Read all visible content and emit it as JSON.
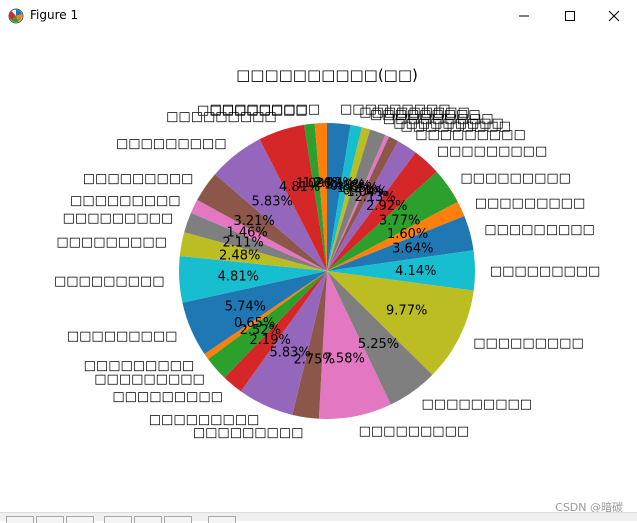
{
  "window": {
    "title": "Figure 1",
    "icons": {
      "app": "matplotlib-icon",
      "minimize": "minimize-icon",
      "maximize": "maximize-icon",
      "close": "close-icon"
    }
  },
  "watermark": "CSDN @暗碳",
  "chart_data": {
    "type": "pie",
    "title": "□□□□□□□□□□(□□)",
    "start_angle_deg": 90,
    "direction": "clockwise",
    "slices": [
      {
        "label": "□□□□□□□□□",
        "pct_label": "2.42%",
        "value": 2.42,
        "color": "#1f77b4"
      },
      {
        "label": "□□□□□□□□□",
        "pct_label": "1.19%",
        "value": 1.19,
        "color": "#17becf"
      },
      {
        "label": "□□□□□□□□□",
        "pct_label": "0.88%",
        "value": 0.88,
        "color": "#bcbd22"
      },
      {
        "label": "□□□□□□□□□",
        "pct_label": "1.66%",
        "value": 1.66,
        "color": "#7f7f7f"
      },
      {
        "label": "□□□□□□□□□",
        "pct_label": "0.41%",
        "value": 0.41,
        "color": "#e377c2"
      },
      {
        "label": "□□□□□□□□□",
        "pct_label": "1.04%",
        "value": 1.04,
        "color": "#8c564b"
      },
      {
        "label": "□□□□□□□□□",
        "pct_label": "2.13%",
        "value": 2.13,
        "color": "#9467bd"
      },
      {
        "label": "□□□□□□□□□",
        "pct_label": "2.92%",
        "value": 2.92,
        "color": "#d62728"
      },
      {
        "label": "□□□□□□□□□",
        "pct_label": "3.77%",
        "value": 3.77,
        "color": "#2ca02c"
      },
      {
        "label": "□□□□□□□□□",
        "pct_label": "1.60%",
        "value": 1.6,
        "color": "#ff7f0e"
      },
      {
        "label": "□□□□□□□□□",
        "pct_label": "3.64%",
        "value": 3.64,
        "color": "#1f77b4"
      },
      {
        "label": "□□□□□□□□□",
        "pct_label": "4.14%",
        "value": 4.14,
        "color": "#17becf"
      },
      {
        "label": "□□□□□□□□□",
        "pct_label": "9.77%",
        "value": 9.77,
        "color": "#bcbd22"
      },
      {
        "label": "□□□□□□□□□",
        "pct_label": "5.25%",
        "value": 5.25,
        "color": "#7f7f7f"
      },
      {
        "label": "□□□□□□□□□",
        "pct_label": "7.58%",
        "value": 7.58,
        "color": "#e377c2"
      },
      {
        "label": "□□□□□□□□□",
        "pct_label": "2.75%",
        "value": 2.75,
        "color": "#8c564b"
      },
      {
        "label": "□□□□□□□□□",
        "pct_label": "5.83%",
        "value": 5.83,
        "color": "#9467bd"
      },
      {
        "label": "□□□□□□□□□",
        "pct_label": "2.19%",
        "value": 2.19,
        "color": "#d62728"
      },
      {
        "label": "□□□□□□□□□",
        "pct_label": "2.52%",
        "value": 2.52,
        "color": "#2ca02c"
      },
      {
        "label": "□□□□□□□□□",
        "pct_label": "0.65%",
        "value": 0.65,
        "color": "#ff7f0e"
      },
      {
        "label": "□□□□□□□□□",
        "pct_label": "5.74%",
        "value": 5.74,
        "color": "#1f77b4"
      },
      {
        "label": "□□□□□□□□□",
        "pct_label": "4.81%",
        "value": 4.81,
        "color": "#17becf"
      },
      {
        "label": "□□□□□□□□□",
        "pct_label": "2.48%",
        "value": 2.48,
        "color": "#bcbd22"
      },
      {
        "label": "□□□□□□□□□",
        "pct_label": "2.11%",
        "value": 2.11,
        "color": "#7f7f7f"
      },
      {
        "label": "□□□□□□□□□",
        "pct_label": "1.46%",
        "value": 1.46,
        "color": "#e377c2"
      },
      {
        "label": "□□□□□□□□□",
        "pct_label": "3.21%",
        "value": 3.21,
        "color": "#8c564b"
      },
      {
        "label": "□□□□□□□□□",
        "pct_label": "5.83%",
        "value": 5.83,
        "color": "#9467bd"
      },
      {
        "label": "□□□□□□□□□",
        "pct_label": "4.81%",
        "value": 4.81,
        "color": "#d62728"
      },
      {
        "label": "□□□□□□□□□",
        "pct_label": "1.09%",
        "value": 1.09,
        "color": "#2ca02c"
      },
      {
        "label": "□□□□□□□□□",
        "pct_label": "1.26%",
        "value": 1.26,
        "color": "#ff7f0e"
      }
    ]
  }
}
